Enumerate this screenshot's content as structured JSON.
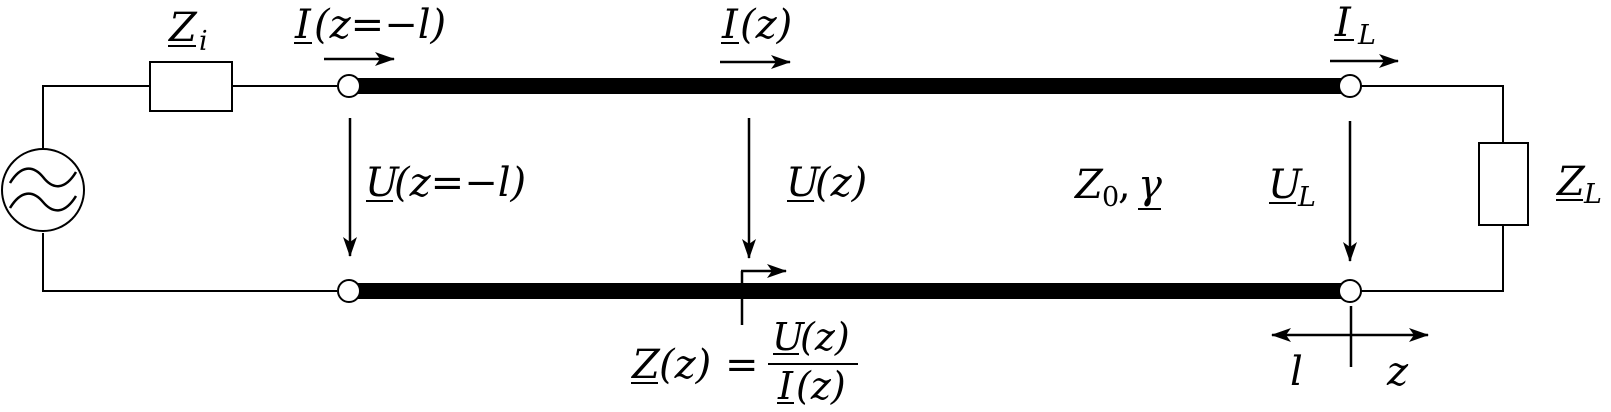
{
  "labels": {
    "source_impedance": {
      "main": "Z",
      "sub": "i"
    },
    "current_input": {
      "main": "I",
      "arg": "(z=−l)"
    },
    "current_mid": {
      "main": "I",
      "arg": "(z)"
    },
    "current_load": {
      "main": "I",
      "sub": "L"
    },
    "voltage_input": {
      "main": "U",
      "arg": "(z=−l)"
    },
    "voltage_mid": {
      "main": "U",
      "arg": "(z)"
    },
    "line_params": {
      "z0_main": "Z",
      "z0_sub": "0",
      "sep": ",",
      "gamma": "γ"
    },
    "voltage_load": {
      "main": "U",
      "sub": "L"
    },
    "load_impedance": {
      "main": "Z",
      "sub": "L"
    },
    "impedance_eq": {
      "lhs_main": "Z",
      "lhs_arg": "(z)",
      "equals": "=",
      "num_main": "U",
      "num_arg": "(z)",
      "den_main": "I",
      "den_arg": "(z)"
    },
    "axis_l": "l",
    "axis_z": "z"
  }
}
